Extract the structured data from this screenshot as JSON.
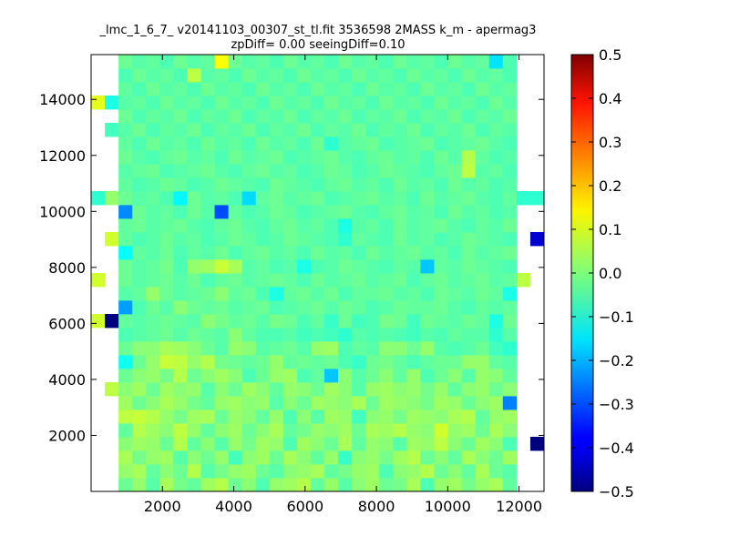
{
  "chart_data": {
    "type": "heatmap",
    "title": "_lmc_1_6_7_ v20141103_00307_st_tl.fit 3536598 2MASS k_m - apermag3",
    "subtitle": "zpDiff= 0.00 seeingDiff=0.10",
    "xlabel": "",
    "ylabel": "",
    "xlim": [
      0,
      12700
    ],
    "ylim": [
      0,
      15600
    ],
    "xticks": [
      2000,
      4000,
      6000,
      8000,
      10000,
      12000
    ],
    "yticks": [
      2000,
      4000,
      6000,
      8000,
      10000,
      12000,
      14000
    ],
    "xtick_labels": [
      "2000",
      "4000",
      "6000",
      "8000",
      "10000",
      "12000"
    ],
    "ytick_labels": [
      "2000",
      "4000",
      "6000",
      "8000",
      "10000",
      "12000",
      "14000"
    ],
    "colorbar": {
      "colormap": "jet",
      "vmin": -0.5,
      "vmax": 0.5,
      "ticks": [
        0.5,
        0.4,
        0.3,
        0.2,
        0.1,
        0.0,
        -0.1,
        -0.2,
        -0.3,
        -0.4,
        -0.5
      ],
      "tick_labels": [
        "0.5",
        "0.4",
        "0.3",
        "0.2",
        "0.1",
        "0.0",
        "−0.1",
        "−0.2",
        "−0.3",
        "−0.4",
        "−0.5"
      ]
    },
    "grid": false,
    "cell_width": 390,
    "cell_height": 490,
    "cells_x_origin": 0,
    "cells_y_origin": 0,
    "columns": 33,
    "rows": 32,
    "values": [
      [
        null,
        null,
        -0.02,
        0.02,
        -0.04,
        0.04,
        -0.01,
        -0.03,
        0.03,
        0.05,
        -0.02,
        0.01,
        -0.05,
        0.02,
        0.03,
        0.05,
        -0.03,
        0.02,
        -0.04,
        0.01,
        0.03,
        -0.02,
        -0.01,
        0.04,
        -0.05,
        0.02,
        0.03,
        -0.01,
        0.02,
        0.04,
        -0.03,
        null,
        null
      ],
      [
        null,
        null,
        0.02,
        0.04,
        -0.03,
        0.01,
        -0.02,
        0.05,
        -0.04,
        -0.01,
        0.02,
        0.03,
        -0.02,
        -0.04,
        0.01,
        0.02,
        0.04,
        -0.03,
        -0.01,
        0.02,
        0.03,
        -0.05,
        0.01,
        0.02,
        0.05,
        -0.02,
        0.01,
        -0.03,
        0.04,
        -0.02,
        -0.04,
        null,
        null
      ],
      [
        null,
        null,
        0.04,
        -0.01,
        0.02,
        0.03,
        -0.04,
        0.01,
        -0.02,
        0.02,
        -0.06,
        0.01,
        0.03,
        -0.02,
        0.04,
        0.01,
        -0.03,
        0.02,
        -0.07,
        0.01,
        0.02,
        -0.01,
        0.03,
        0.05,
        -0.02,
        0.01,
        -0.03,
        0.04,
        0.01,
        -0.02,
        0.03,
        null,
        null
      ],
      [
        null,
        null,
        0.01,
        0.03,
        0.02,
        -0.02,
        0.05,
        -0.03,
        0.01,
        -0.04,
        0.02,
        -0.01,
        0.03,
        0.02,
        -0.05,
        0.03,
        0.01,
        -0.02,
        0.04,
        -0.03,
        0.02,
        0.01,
        -0.04,
        0.03,
        0.02,
        0.06,
        0.01,
        -0.02,
        0.03,
        0.01,
        -0.05,
        null,
        -0.5
      ],
      [
        null,
        null,
        -0.03,
        0.05,
        0.03,
        0.01,
        0.06,
        0.02,
        -0.03,
        0.01,
        0.03,
        -0.02,
        0.01,
        0.04,
        -0.03,
        -0.01,
        0.02,
        0.01,
        0.03,
        -0.02,
        0.04,
        0.03,
        0.05,
        0.02,
        0.01,
        0.08,
        0.02,
        0.03,
        -0.02,
        0.04,
        0.01,
        null,
        null
      ],
      [
        null,
        null,
        0.06,
        0.07,
        0.05,
        0.02,
        -0.01,
        0.03,
        0.04,
        -0.02,
        0.02,
        0.01,
        -0.03,
        0.02,
        -0.05,
        0.01,
        -0.04,
        0.03,
        0.02,
        -0.06,
        0.01,
        0.02,
        -0.01,
        0.03,
        0.02,
        0.01,
        0.04,
        0.05,
        -0.03,
        0.02,
        0.03,
        null,
        null
      ],
      [
        null,
        null,
        0.03,
        -0.02,
        0.01,
        0.04,
        0.02,
        -0.01,
        -0.03,
        0.02,
        0.03,
        0.01,
        0.02,
        -0.04,
        0.01,
        -0.02,
        0.03,
        0.02,
        0.01,
        0.04,
        -0.02,
        0.03,
        0.02,
        0.01,
        -0.01,
        0.03,
        0.02,
        -0.02,
        0.01,
        0.03,
        -0.25,
        null,
        null
      ],
      [
        null,
        0.06,
        0.01,
        0.03,
        -0.02,
        0.03,
        0.01,
        0.02,
        -0.04,
        0.01,
        -0.02,
        0.03,
        0.01,
        -0.03,
        0.02,
        0.01,
        -0.02,
        0.03,
        0.01,
        -0.04,
        0.02,
        0.03,
        0.01,
        0.02,
        -0.01,
        0.02,
        -0.03,
        0.01,
        0.02,
        -0.02,
        0.01,
        null,
        null
      ],
      [
        null,
        null,
        -0.02,
        0.01,
        0.02,
        -0.01,
        0.05,
        -0.02,
        0.01,
        0.03,
        0.01,
        -0.05,
        -0.02,
        0.02,
        0.03,
        -0.05,
        -0.03,
        -0.18,
        0.01,
        -0.04,
        -0.02,
        0.01,
        -0.03,
        0.02,
        -0.05,
        -0.02,
        0.01,
        -0.04,
        0.02,
        0.01,
        -0.03,
        null,
        null
      ],
      [
        null,
        null,
        -0.11,
        -0.02,
        0.02,
        0.07,
        0.06,
        0.02,
        0.05,
        -0.01,
        -0.02,
        -0.03,
        -0.02,
        0.02,
        -0.03,
        -0.02,
        -0.03,
        -0.02,
        -0.05,
        -0.07,
        -0.02,
        -0.01,
        -0.03,
        -0.05,
        -0.03,
        -0.02,
        -0.02,
        0.02,
        0.02,
        -0.03,
        -0.04,
        null,
        null
      ],
      [
        null,
        null,
        -0.02,
        0.01,
        0.01,
        0.04,
        0.03,
        0.01,
        -0.02,
        -0.04,
        0.02,
        0.01,
        -0.04,
        -0.03,
        -0.02,
        -0.04,
        0.02,
        0.03,
        -0.05,
        -0.03,
        -0.04,
        0.01,
        0.01,
        -0.02,
        0.02,
        -0.04,
        -0.05,
        -0.04,
        -0.02,
        -0.06,
        -0.08,
        null,
        null
      ],
      [
        null,
        null,
        -0.05,
        -0.04,
        -0.03,
        -0.02,
        -0.04,
        -0.02,
        -0.03,
        -0.04,
        0.01,
        -0.03,
        -0.05,
        -0.05,
        -0.04,
        -0.06,
        -0.05,
        -0.06,
        -0.08,
        -0.04,
        -0.05,
        -0.04,
        -0.05,
        -0.06,
        -0.04,
        -0.05,
        -0.03,
        -0.04,
        -0.04,
        -0.08,
        -0.04,
        null,
        null
      ],
      [
        0.08,
        -0.5,
        -0.03,
        -0.04,
        -0.03,
        -0.02,
        -0.03,
        -0.04,
        0.01,
        -0.01,
        -0.03,
        -0.02,
        -0.04,
        -0.01,
        -0.02,
        -0.05,
        -0.03,
        -0.07,
        -0.02,
        -0.06,
        -0.05,
        -0.01,
        -0.02,
        -0.06,
        -0.02,
        -0.03,
        -0.04,
        -0.02,
        -0.03,
        -0.1,
        -0.02,
        null,
        null
      ],
      [
        null,
        null,
        -0.22,
        -0.05,
        -0.02,
        -0.04,
        0.01,
        -0.02,
        -0.03,
        -0.02,
        -0.04,
        -0.03,
        -0.02,
        -0.05,
        -0.04,
        -0.03,
        -0.02,
        -0.04,
        -0.02,
        -0.03,
        -0.05,
        -0.04,
        -0.02,
        -0.03,
        -0.03,
        -0.02,
        -0.04,
        -0.05,
        -0.03,
        -0.04,
        -0.03,
        null,
        null
      ],
      [
        null,
        null,
        -0.04,
        -0.03,
        0.02,
        -0.02,
        -0.04,
        -0.03,
        -0.02,
        0.01,
        -0.03,
        -0.02,
        -0.05,
        -0.1,
        -0.03,
        -0.02,
        -0.04,
        -0.02,
        -0.05,
        -0.03,
        -0.03,
        -0.02,
        -0.04,
        -0.03,
        -0.05,
        -0.02,
        -0.03,
        -0.04,
        -0.02,
        -0.03,
        -0.1,
        null,
        null
      ],
      [
        0.08,
        null,
        -0.02,
        -0.04,
        -0.03,
        -0.02,
        -0.04,
        -0.02,
        -0.05,
        -0.03,
        -0.02,
        -0.04,
        -0.03,
        -0.02,
        -0.03,
        -0.05,
        -0.02,
        -0.04,
        -0.03,
        -0.02,
        -0.04,
        -0.03,
        -0.02,
        -0.05,
        -0.03,
        -0.02,
        -0.04,
        -0.03,
        -0.02,
        -0.04,
        -0.03,
        0.06,
        null
      ],
      [
        null,
        null,
        -0.02,
        -0.04,
        -0.03,
        -0.01,
        -0.05,
        0.02,
        0.03,
        0.07,
        0.04,
        -0.04,
        -0.03,
        -0.05,
        -0.04,
        -0.1,
        -0.05,
        -0.04,
        -0.02,
        -0.03,
        -0.04,
        -0.05,
        -0.03,
        -0.04,
        -0.18,
        -0.03,
        -0.04,
        -0.02,
        -0.03,
        -0.04,
        -0.05,
        null,
        null
      ],
      [
        null,
        null,
        -0.12,
        -0.03,
        -0.04,
        -0.02,
        -0.05,
        -0.03,
        -0.04,
        -0.02,
        -0.05,
        -0.03,
        -0.02,
        -0.04,
        -0.03,
        -0.05,
        -0.02,
        -0.04,
        -0.03,
        -0.05,
        -0.02,
        -0.04,
        -0.03,
        -0.02,
        -0.04,
        -0.03,
        -0.05,
        -0.02,
        -0.04,
        -0.03,
        -0.02,
        null,
        null
      ],
      [
        null,
        0.08,
        -0.03,
        -0.05,
        -0.04,
        -0.02,
        -0.04,
        -0.03,
        -0.05,
        -0.04,
        -0.02,
        -0.03,
        -0.05,
        -0.04,
        -0.02,
        -0.03,
        -0.04,
        -0.05,
        -0.08,
        -0.03,
        -0.04,
        -0.05,
        -0.02,
        -0.04,
        -0.03,
        -0.05,
        -0.04,
        -0.02,
        -0.03,
        -0.04,
        -0.05,
        null,
        -0.42
      ],
      [
        null,
        null,
        -0.03,
        -0.02,
        -0.04,
        -0.03,
        -0.02,
        -0.04,
        -0.05,
        -0.03,
        -0.02,
        -0.04,
        -0.05,
        -0.03,
        -0.02,
        -0.04,
        -0.03,
        -0.05,
        -0.1,
        -0.04,
        -0.03,
        -0.05,
        -0.02,
        -0.04,
        -0.03,
        -0.02,
        -0.04,
        -0.05,
        -0.03,
        -0.04,
        -0.02,
        null,
        null
      ],
      [
        null,
        null,
        -0.24,
        -0.02,
        -0.04,
        -0.03,
        -0.05,
        -0.02,
        -0.04,
        -0.3,
        -0.03,
        -0.05,
        -0.04,
        -0.02,
        -0.03,
        -0.05,
        -0.04,
        -0.03,
        -0.02,
        -0.04,
        -0.05,
        -0.03,
        -0.02,
        -0.04,
        -0.03,
        -0.05,
        -0.02,
        -0.04,
        -0.03,
        -0.05,
        -0.04,
        null,
        null
      ],
      [
        -0.08,
        0.02,
        -0.02,
        -0.04,
        -0.03,
        -0.05,
        -0.13,
        -0.02,
        -0.04,
        -0.03,
        -0.05,
        -0.16,
        -0.03,
        -0.02,
        -0.04,
        -0.03,
        -0.02,
        -0.05,
        -0.04,
        -0.03,
        -0.02,
        -0.04,
        -0.03,
        -0.05,
        -0.02,
        -0.04,
        -0.03,
        -0.02,
        -0.04,
        -0.05,
        -0.03,
        -0.08,
        -0.08
      ],
      [
        null,
        null,
        -0.03,
        -0.05,
        -0.04,
        -0.02,
        -0.03,
        -0.05,
        -0.04,
        -0.02,
        -0.03,
        -0.04,
        -0.05,
        -0.02,
        -0.03,
        -0.04,
        -0.05,
        -0.03,
        -0.02,
        -0.04,
        -0.03,
        -0.05,
        -0.02,
        -0.04,
        -0.03,
        -0.05,
        -0.02,
        -0.04,
        -0.03,
        -0.05,
        -0.04,
        null,
        null
      ],
      [
        null,
        null,
        -0.04,
        -0.03,
        -0.02,
        -0.05,
        -0.04,
        -0.03,
        -0.02,
        -0.04,
        -0.05,
        -0.03,
        -0.02,
        -0.04,
        -0.03,
        -0.05,
        -0.04,
        -0.02,
        -0.03,
        -0.05,
        -0.04,
        -0.02,
        -0.03,
        -0.04,
        -0.05,
        -0.03,
        -0.02,
        0.06,
        -0.04,
        -0.03,
        -0.05,
        null,
        null
      ],
      [
        null,
        null,
        -0.02,
        -0.04,
        -0.05,
        -0.03,
        -0.02,
        -0.04,
        -0.03,
        -0.05,
        -0.02,
        -0.04,
        -0.03,
        -0.02,
        -0.05,
        -0.04,
        -0.03,
        -0.02,
        -0.04,
        -0.05,
        -0.03,
        -0.02,
        -0.04,
        -0.03,
        -0.05,
        -0.02,
        -0.04,
        0.05,
        -0.03,
        -0.05,
        -0.04,
        null,
        null
      ],
      [
        null,
        null,
        -0.03,
        -0.05,
        -0.02,
        -0.04,
        -0.03,
        -0.05,
        -0.02,
        -0.04,
        -0.03,
        -0.05,
        -0.02,
        -0.04,
        -0.03,
        -0.05,
        -0.02,
        -0.08,
        -0.04,
        -0.03,
        -0.02,
        -0.05,
        -0.04,
        -0.03,
        -0.02,
        -0.05,
        -0.04,
        -0.03,
        -0.02,
        -0.04,
        -0.05,
        null,
        null
      ],
      [
        null,
        -0.06,
        -0.04,
        -0.02,
        -0.05,
        -0.03,
        -0.04,
        -0.02,
        -0.05,
        -0.03,
        -0.04,
        -0.02,
        -0.05,
        -0.03,
        -0.04,
        -0.02,
        -0.05,
        -0.03,
        -0.04,
        -0.02,
        -0.05,
        -0.03,
        -0.04,
        -0.02,
        -0.05,
        -0.03,
        -0.04,
        -0.02,
        -0.05,
        -0.03,
        -0.04,
        null,
        null
      ],
      [
        null,
        null,
        -0.02,
        -0.05,
        -0.03,
        -0.04,
        -0.02,
        -0.05,
        -0.03,
        -0.04,
        -0.02,
        -0.05,
        -0.03,
        -0.04,
        -0.02,
        -0.05,
        -0.03,
        -0.04,
        -0.02,
        -0.05,
        -0.03,
        -0.04,
        -0.02,
        -0.05,
        -0.03,
        -0.04,
        -0.02,
        -0.05,
        -0.03,
        -0.04,
        -0.02,
        null,
        null
      ],
      [
        0.1,
        -0.1,
        -0.04,
        -0.03,
        -0.05,
        -0.02,
        -0.04,
        -0.03,
        -0.05,
        -0.02,
        -0.04,
        -0.03,
        -0.05,
        -0.02,
        -0.04,
        -0.03,
        -0.05,
        -0.02,
        -0.04,
        -0.03,
        -0.05,
        -0.02,
        -0.04,
        -0.03,
        -0.05,
        -0.02,
        -0.04,
        -0.03,
        -0.05,
        -0.02,
        -0.04,
        null,
        null
      ],
      [
        null,
        null,
        -0.03,
        -0.05,
        -0.02,
        -0.04,
        -0.03,
        -0.05,
        -0.02,
        -0.04,
        -0.03,
        -0.05,
        -0.02,
        -0.04,
        -0.03,
        -0.05,
        -0.02,
        -0.04,
        -0.03,
        -0.05,
        -0.02,
        -0.04,
        -0.03,
        -0.05,
        -0.02,
        -0.04,
        -0.03,
        -0.05,
        -0.02,
        -0.04,
        -0.03,
        null,
        null
      ],
      [
        null,
        null,
        -0.05,
        -0.02,
        -0.04,
        -0.03,
        -0.05,
        0.06,
        -0.04,
        -0.03,
        -0.05,
        -0.02,
        -0.04,
        -0.03,
        -0.05,
        -0.02,
        -0.04,
        -0.03,
        -0.05,
        -0.02,
        -0.04,
        -0.03,
        -0.05,
        -0.02,
        -0.04,
        -0.03,
        -0.05,
        -0.02,
        -0.04,
        -0.03,
        -0.05,
        null,
        null
      ],
      [
        null,
        null,
        -0.02,
        -0.04,
        -0.03,
        -0.05,
        -0.02,
        -0.04,
        -0.03,
        0.12,
        -0.02,
        -0.04,
        -0.03,
        -0.05,
        -0.02,
        -0.04,
        -0.03,
        -0.05,
        -0.02,
        -0.04,
        -0.03,
        -0.05,
        -0.02,
        -0.04,
        -0.03,
        -0.05,
        -0.02,
        -0.04,
        -0.03,
        -0.15,
        -0.05,
        null,
        null
      ]
    ]
  }
}
